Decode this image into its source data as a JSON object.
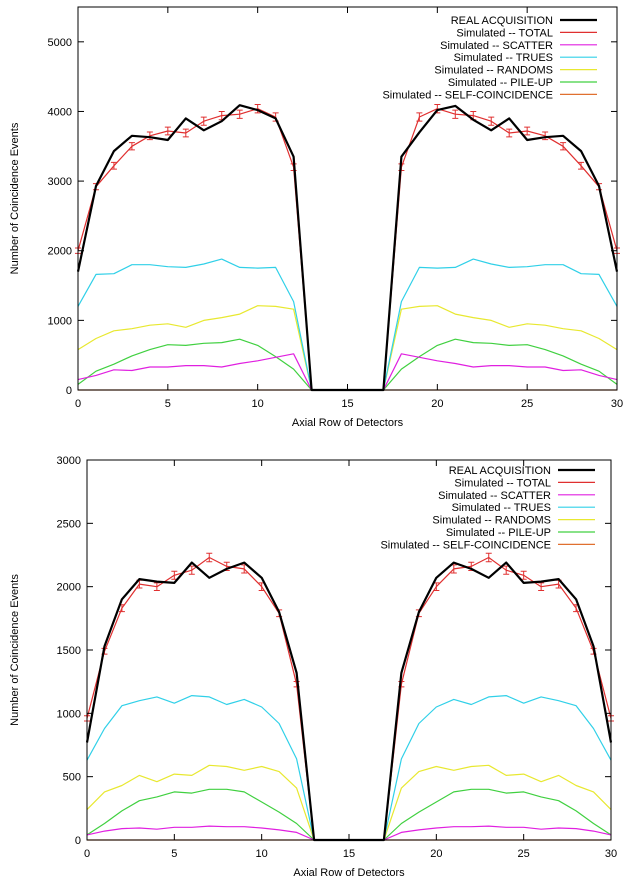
{
  "chart_data": [
    {
      "type": "line",
      "xlabel": "Axial Row of Detectors",
      "ylabel": "Number of Coincidence Events",
      "xlim": [
        0,
        30
      ],
      "ylim": [
        0,
        5500
      ],
      "xticks": [
        0,
        5,
        10,
        15,
        20,
        25,
        30
      ],
      "yticks": [
        0,
        1000,
        2000,
        3000,
        4000,
        5000
      ],
      "grid": false,
      "legend": "top-right",
      "x": [
        0,
        1,
        2,
        3,
        4,
        5,
        6,
        7,
        8,
        9,
        10,
        11,
        12,
        13,
        14,
        15,
        16,
        17,
        18,
        19,
        20,
        21,
        22,
        23,
        24,
        25,
        26,
        27,
        28,
        29,
        30
      ],
      "series": [
        {
          "name": "REAL ACQUISITION",
          "color": "#000000",
          "values": [
            1700,
            2930,
            3430,
            3650,
            3630,
            3590,
            3900,
            3730,
            3860,
            4090,
            4020,
            3900,
            3350,
            0,
            0,
            0,
            0,
            0,
            3350,
            3700,
            4020,
            4080,
            3880,
            3730,
            3900,
            3590,
            3630,
            3650,
            3430,
            2930,
            1700
          ]
        },
        {
          "name": "Simulated -- TOTAL",
          "color": "#e03030",
          "error_bars": true,
          "values": [
            2000,
            2920,
            3220,
            3500,
            3650,
            3720,
            3690,
            3860,
            3940,
            3960,
            4040,
            3920,
            3200,
            0,
            0,
            0,
            0,
            0,
            3200,
            3920,
            4040,
            3960,
            3940,
            3860,
            3690,
            3720,
            3650,
            3500,
            3220,
            2920,
            2000
          ]
        },
        {
          "name": "Simulated -- SCATTER",
          "color": "#e020e0",
          "values": [
            150,
            210,
            290,
            280,
            330,
            330,
            350,
            350,
            330,
            380,
            420,
            470,
            520,
            0,
            0,
            0,
            0,
            0,
            520,
            470,
            420,
            380,
            330,
            350,
            350,
            330,
            330,
            280,
            290,
            210,
            150
          ]
        },
        {
          "name": "Simulated -- TRUES",
          "color": "#30d0e8",
          "values": [
            1200,
            1660,
            1670,
            1800,
            1800,
            1770,
            1760,
            1810,
            1880,
            1760,
            1750,
            1760,
            1270,
            0,
            0,
            0,
            0,
            0,
            1270,
            1760,
            1750,
            1760,
            1880,
            1810,
            1760,
            1770,
            1800,
            1800,
            1670,
            1660,
            1200
          ]
        },
        {
          "name": "Simulated -- RANDOMS",
          "color": "#e8e830",
          "values": [
            580,
            740,
            850,
            880,
            930,
            950,
            900,
            1000,
            1040,
            1090,
            1210,
            1200,
            1160,
            0,
            0,
            0,
            0,
            0,
            1160,
            1200,
            1210,
            1090,
            1040,
            1000,
            900,
            950,
            930,
            880,
            850,
            740,
            580
          ]
        },
        {
          "name": "Simulated -- PILE-UP",
          "color": "#40d040",
          "values": [
            80,
            270,
            370,
            490,
            580,
            650,
            640,
            670,
            680,
            730,
            640,
            480,
            300,
            0,
            0,
            0,
            0,
            0,
            300,
            480,
            640,
            730,
            680,
            670,
            640,
            650,
            580,
            490,
            370,
            270,
            80
          ]
        },
        {
          "name": "Simulated -- SELF-COINCIDENCE",
          "color": "#e07030",
          "values": [
            0,
            0,
            0,
            0,
            0,
            0,
            0,
            0,
            0,
            0,
            0,
            0,
            0,
            0,
            0,
            0,
            0,
            0,
            0,
            0,
            0,
            0,
            0,
            0,
            0,
            0,
            0,
            0,
            0,
            0,
            0
          ]
        }
      ]
    },
    {
      "type": "line",
      "xlabel": "Axial Row of Detectors",
      "ylabel": "Number of Coincidence Events",
      "xlim": [
        0,
        30
      ],
      "ylim": [
        0,
        3000
      ],
      "xticks": [
        0,
        5,
        10,
        15,
        20,
        25,
        30
      ],
      "yticks": [
        0,
        500,
        1000,
        1500,
        2000,
        2500,
        3000
      ],
      "grid": false,
      "legend": "top-right",
      "x": [
        0,
        1,
        2,
        3,
        4,
        5,
        6,
        7,
        8,
        9,
        10,
        11,
        12,
        13,
        14,
        15,
        16,
        17,
        18,
        19,
        20,
        21,
        22,
        23,
        24,
        25,
        26,
        27,
        28,
        29,
        30
      ],
      "series": [
        {
          "name": "REAL ACQUISITION",
          "color": "#000000",
          "values": [
            770,
            1530,
            1900,
            2060,
            2040,
            2030,
            2190,
            2070,
            2140,
            2190,
            2070,
            1800,
            1320,
            0,
            0,
            0,
            0,
            0,
            1320,
            1800,
            2070,
            2190,
            2140,
            2070,
            2190,
            2030,
            2040,
            2060,
            1900,
            1530,
            770
          ]
        },
        {
          "name": "Simulated -- TOTAL",
          "color": "#e03030",
          "error_bars": true,
          "values": [
            960,
            1490,
            1830,
            2020,
            2000,
            2090,
            2130,
            2230,
            2160,
            2140,
            2000,
            1790,
            1230,
            0,
            0,
            0,
            0,
            0,
            1230,
            1790,
            2000,
            2140,
            2160,
            2230,
            2130,
            2090,
            2000,
            2020,
            1830,
            1490,
            960
          ]
        },
        {
          "name": "Simulated -- SCATTER",
          "color": "#e020e0",
          "values": [
            40,
            70,
            90,
            95,
            85,
            100,
            100,
            110,
            105,
            105,
            95,
            80,
            60,
            0,
            0,
            0,
            0,
            0,
            60,
            80,
            95,
            105,
            105,
            110,
            100,
            100,
            85,
            95,
            90,
            70,
            40
          ]
        },
        {
          "name": "Simulated -- TRUES",
          "color": "#30d0e8",
          "values": [
            630,
            880,
            1060,
            1100,
            1130,
            1080,
            1140,
            1130,
            1070,
            1110,
            1050,
            920,
            640,
            0,
            0,
            0,
            0,
            0,
            640,
            920,
            1050,
            1110,
            1070,
            1130,
            1140,
            1080,
            1130,
            1100,
            1060,
            880,
            630
          ]
        },
        {
          "name": "Simulated -- RANDOMS",
          "color": "#e8e830",
          "values": [
            240,
            380,
            430,
            510,
            460,
            520,
            510,
            590,
            580,
            550,
            580,
            540,
            410,
            0,
            0,
            0,
            0,
            0,
            410,
            540,
            580,
            550,
            580,
            590,
            510,
            520,
            460,
            510,
            430,
            380,
            240
          ]
        },
        {
          "name": "Simulated -- PILE-UP",
          "color": "#40d040",
          "values": [
            40,
            130,
            230,
            310,
            340,
            380,
            370,
            400,
            400,
            380,
            300,
            220,
            130,
            0,
            0,
            0,
            0,
            0,
            130,
            220,
            300,
            380,
            400,
            400,
            370,
            380,
            340,
            310,
            230,
            130,
            40
          ]
        },
        {
          "name": "Simulated -- SELF-COINCIDENCE",
          "color": "#e07030",
          "values": [
            0,
            0,
            0,
            0,
            0,
            0,
            0,
            0,
            0,
            0,
            0,
            0,
            0,
            0,
            0,
            0,
            0,
            0,
            0,
            0,
            0,
            0,
            0,
            0,
            0,
            0,
            0,
            0,
            0,
            0,
            0
          ]
        }
      ]
    }
  ]
}
